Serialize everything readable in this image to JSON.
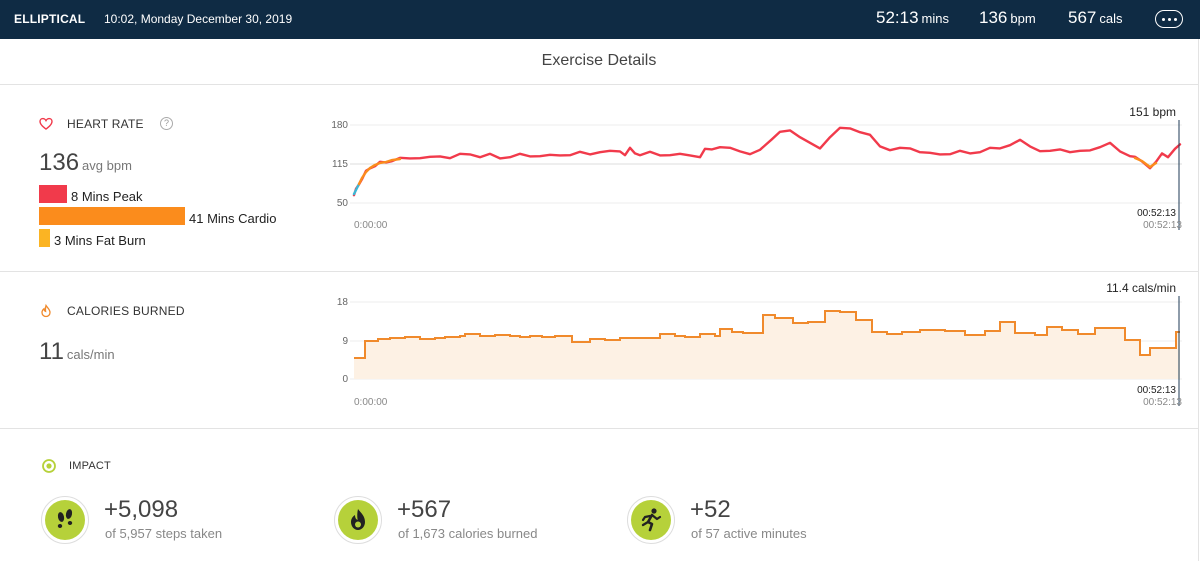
{
  "header": {
    "activity": "ELLIPTICAL",
    "datetime": "10:02, Monday December 30, 2019",
    "duration": {
      "value": "52:13",
      "unit": "mins"
    },
    "heart": {
      "value": "136",
      "unit": "bpm"
    },
    "calories": {
      "value": "567",
      "unit": "cals"
    }
  },
  "page_title": "Exercise Details",
  "heart_rate": {
    "label": "HEART RATE",
    "help": "?",
    "avg_value": "136",
    "avg_unit": "avg bpm",
    "zones": [
      {
        "label": "8 Mins Peak",
        "minutes": 8,
        "color": "#f13a4b"
      },
      {
        "label": "41 Mins Cardio",
        "minutes": 41,
        "color": "#fb8c1c"
      },
      {
        "label": "3 Mins Fat Burn",
        "minutes": 3,
        "color": "#fbb423"
      }
    ],
    "chart": {
      "y_ticks": [
        "180",
        "115",
        "50"
      ],
      "x_start": "0:00:00",
      "x_end": "00:52:13",
      "cursor_time": "00:52:13",
      "cursor_value": "151 bpm"
    }
  },
  "calories_burned": {
    "label": "CALORIES BURNED",
    "value": "11",
    "unit": "cals/min",
    "chart": {
      "y_ticks": [
        "18",
        "9",
        "0"
      ],
      "x_start": "0:00:00",
      "x_end": "00:52:13",
      "cursor_time": "00:52:13",
      "cursor_value": "11.4 cals/min"
    }
  },
  "impact": {
    "label": "IMPACT",
    "items": [
      {
        "value": "+5,098",
        "sub": "of 5,957 steps taken",
        "icon": "footsteps-icon"
      },
      {
        "value": "+567",
        "sub": "of 1,673 calories burned",
        "icon": "flame-icon"
      },
      {
        "value": "+52",
        "sub": "of 57 active minutes",
        "icon": "runner-icon"
      }
    ]
  },
  "colors": {
    "topbar": "#0f2b44",
    "peak": "#f13a4b",
    "cardio": "#fb8c1c",
    "fatburn": "#fbb423",
    "below": "#3ab8d6",
    "calories_line": "#f08a2c",
    "calories_fill": "#fdf1e4",
    "impact_green": "#b6d13a"
  }
}
